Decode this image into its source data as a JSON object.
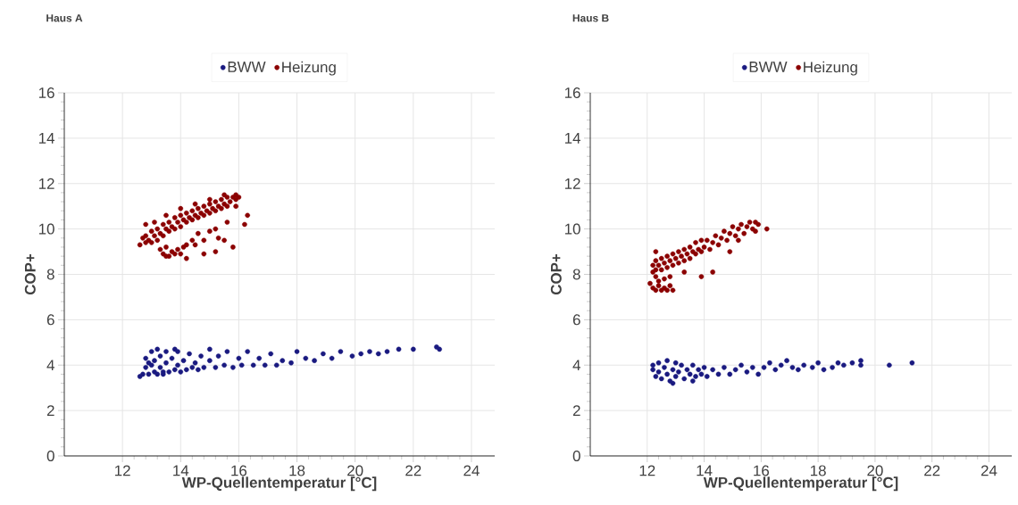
{
  "chart_data": [
    {
      "type": "scatter",
      "title": "Haus A",
      "xlabel": "WP-Quellentemperatur [°C]",
      "ylabel": "COP+",
      "xlim": [
        10,
        24.8
      ],
      "ylim": [
        0,
        16
      ],
      "xticks": [
        12,
        14,
        16,
        18,
        20,
        22,
        24
      ],
      "yticks": [
        0,
        2,
        4,
        6,
        8,
        10,
        12,
        14,
        16
      ],
      "grid": true,
      "legend": "top",
      "marker": "circle",
      "series": [
        {
          "name": "BWW",
          "color": "#1a1a80",
          "x": [
            12.6,
            12.7,
            12.8,
            12.8,
            12.9,
            13.0,
            13.0,
            13.1,
            13.1,
            13.2,
            13.2,
            13.3,
            13.3,
            13.4,
            13.5,
            13.5,
            13.6,
            13.7,
            13.8,
            13.9,
            13.9,
            14.0,
            14.1,
            14.2,
            14.3,
            14.4,
            14.5,
            14.6,
            14.7,
            14.8,
            15.0,
            15.0,
            15.2,
            15.3,
            15.5,
            15.6,
            15.8,
            16.0,
            16.1,
            16.3,
            16.5,
            16.7,
            16.9,
            17.1,
            17.3,
            17.5,
            17.8,
            18.0,
            18.3,
            18.6,
            18.9,
            19.2,
            19.5,
            19.9,
            20.2,
            20.5,
            20.8,
            21.1,
            21.5,
            22.0,
            22.8,
            22.9,
            13.4,
            13.8,
            12.9
          ],
          "values": [
            3.5,
            3.6,
            3.9,
            4.3,
            3.6,
            4.0,
            4.6,
            3.7,
            4.2,
            3.6,
            4.7,
            3.9,
            4.4,
            3.7,
            4.1,
            4.6,
            3.7,
            4.3,
            3.8,
            4.0,
            4.6,
            3.7,
            4.2,
            3.8,
            4.5,
            3.9,
            4.1,
            3.8,
            4.4,
            3.9,
            4.2,
            4.7,
            3.9,
            4.4,
            4.0,
            4.6,
            3.9,
            4.3,
            4.0,
            4.6,
            4.0,
            4.3,
            4.0,
            4.5,
            4.0,
            4.2,
            4.1,
            4.6,
            4.3,
            4.2,
            4.5,
            4.3,
            4.6,
            4.4,
            4.5,
            4.6,
            4.5,
            4.6,
            4.7,
            4.7,
            4.8,
            4.7,
            3.6,
            4.7,
            4.1
          ]
        },
        {
          "name": "Heizung",
          "color": "#8b0000",
          "x": [
            12.6,
            12.7,
            12.8,
            12.8,
            12.9,
            13.0,
            13.0,
            13.1,
            13.2,
            13.2,
            13.3,
            13.4,
            13.4,
            13.5,
            13.6,
            13.6,
            13.7,
            13.8,
            13.8,
            13.9,
            14.0,
            14.0,
            14.1,
            14.2,
            14.2,
            14.3,
            14.4,
            14.4,
            14.5,
            14.6,
            14.6,
            14.7,
            14.8,
            14.8,
            14.9,
            15.0,
            15.0,
            15.1,
            15.2,
            15.2,
            15.3,
            15.4,
            15.4,
            15.5,
            15.6,
            15.6,
            15.7,
            15.8,
            15.9,
            16.0,
            15.9,
            12.8,
            13.1,
            13.5,
            14.0,
            14.5,
            15.0,
            15.5,
            15.9,
            13.3,
            13.4,
            13.5,
            13.6,
            13.7,
            13.8,
            13.9,
            14.0,
            14.1,
            13.5,
            14.4,
            14.6,
            14.8,
            15.0,
            15.2,
            15.3,
            15.5,
            14.2,
            14.5,
            16.3,
            16.2,
            15.8,
            15.2,
            14.2,
            14.8,
            15.6
          ],
          "values": [
            9.3,
            9.6,
            9.4,
            9.7,
            9.5,
            9.9,
            9.4,
            9.7,
            10.0,
            9.5,
            9.8,
            10.2,
            9.7,
            10.0,
            10.3,
            9.9,
            10.1,
            10.5,
            10.0,
            10.3,
            10.6,
            10.1,
            10.4,
            10.7,
            10.3,
            10.5,
            10.8,
            10.4,
            10.6,
            10.9,
            10.5,
            10.7,
            11.0,
            10.6,
            10.8,
            11.1,
            10.7,
            10.9,
            11.2,
            10.8,
            11.0,
            11.3,
            10.9,
            11.1,
            11.4,
            11.0,
            11.2,
            11.4,
            11.3,
            11.4,
            11.0,
            10.2,
            10.3,
            10.6,
            10.9,
            11.1,
            11.3,
            11.5,
            11.5,
            9.1,
            8.9,
            9.2,
            8.8,
            9.0,
            8.9,
            9.1,
            8.9,
            9.2,
            8.8,
            9.5,
            9.8,
            9.5,
            9.9,
            10.0,
            9.6,
            9.5,
            9.3,
            9.3,
            10.6,
            10.2,
            9.2,
            9.0,
            8.7,
            8.9,
            10.3
          ]
        }
      ]
    },
    {
      "type": "scatter",
      "title": "Haus B",
      "xlabel": "WP-Quellentemperatur [°C]",
      "ylabel": "COP+",
      "xlim": [
        10,
        24.8
      ],
      "ylim": [
        0,
        16
      ],
      "xticks": [
        12,
        14,
        16,
        18,
        20,
        22,
        24
      ],
      "yticks": [
        0,
        2,
        4,
        6,
        8,
        10,
        12,
        14,
        16
      ],
      "grid": true,
      "legend": "top",
      "marker": "circle",
      "series": [
        {
          "name": "BWW",
          "color": "#1a1a80",
          "x": [
            12.2,
            12.2,
            12.3,
            12.4,
            12.4,
            12.5,
            12.6,
            12.7,
            12.7,
            12.8,
            12.9,
            13.0,
            13.0,
            13.1,
            13.2,
            13.3,
            13.4,
            13.5,
            13.6,
            13.7,
            13.8,
            13.9,
            14.0,
            14.1,
            14.3,
            14.5,
            14.7,
            14.9,
            15.1,
            15.3,
            15.5,
            15.7,
            15.9,
            16.1,
            16.3,
            16.5,
            16.7,
            16.9,
            17.1,
            17.3,
            17.5,
            17.8,
            18.0,
            18.2,
            18.5,
            18.7,
            18.9,
            19.2,
            19.5,
            19.5,
            20.5,
            21.3,
            12.9,
            13.6
          ],
          "values": [
            3.8,
            4.0,
            3.5,
            3.7,
            4.1,
            3.4,
            3.9,
            3.6,
            4.2,
            3.3,
            3.8,
            4.1,
            3.5,
            3.7,
            4.0,
            3.4,
            3.8,
            3.6,
            4.0,
            3.5,
            3.8,
            3.6,
            3.9,
            3.5,
            3.8,
            3.6,
            3.9,
            3.6,
            3.8,
            4.0,
            3.7,
            3.9,
            3.6,
            3.9,
            4.1,
            3.8,
            4.0,
            4.2,
            3.9,
            3.8,
            4.0,
            3.9,
            4.1,
            3.8,
            3.9,
            4.1,
            4.0,
            4.1,
            4.2,
            4.0,
            4.0,
            4.1,
            3.2,
            3.3
          ]
        },
        {
          "name": "Heizung",
          "color": "#8b0000",
          "x": [
            12.2,
            12.2,
            12.3,
            12.3,
            12.4,
            12.5,
            12.5,
            12.6,
            12.7,
            12.7,
            12.8,
            12.9,
            12.9,
            13.0,
            13.1,
            13.1,
            13.2,
            13.3,
            13.3,
            13.4,
            13.5,
            13.5,
            13.6,
            13.7,
            13.7,
            13.8,
            13.9,
            13.9,
            14.0,
            14.1,
            14.2,
            14.3,
            14.4,
            14.5,
            14.6,
            14.7,
            14.8,
            14.9,
            15.0,
            15.1,
            15.2,
            15.3,
            15.4,
            15.5,
            15.6,
            15.7,
            15.8,
            15.9,
            15.8,
            12.2,
            12.3,
            12.4,
            12.5,
            12.6,
            12.7,
            12.8,
            12.9,
            12.4,
            12.6,
            16.2,
            12.3,
            13.9,
            14.3,
            15.2,
            12.3,
            12.1,
            12.8,
            13.3,
            14.9
          ],
          "values": [
            8.1,
            8.4,
            8.6,
            8.2,
            8.4,
            8.7,
            8.2,
            8.5,
            8.8,
            8.3,
            8.6,
            8.9,
            8.4,
            8.7,
            9.0,
            8.5,
            8.8,
            9.1,
            8.6,
            8.9,
            9.2,
            8.7,
            9.0,
            9.4,
            8.9,
            9.1,
            9.5,
            9.0,
            9.2,
            9.5,
            9.1,
            9.4,
            9.7,
            9.3,
            9.6,
            9.9,
            9.5,
            9.8,
            10.1,
            9.7,
            10.0,
            10.2,
            9.8,
            10.1,
            10.3,
            10.0,
            10.3,
            10.2,
            9.9,
            7.4,
            7.3,
            7.5,
            7.3,
            7.4,
            7.3,
            7.5,
            7.3,
            7.7,
            7.8,
            10.0,
            9.0,
            7.9,
            8.1,
            9.5,
            7.9,
            7.6,
            7.9,
            8.1,
            9.0
          ]
        }
      ]
    }
  ]
}
